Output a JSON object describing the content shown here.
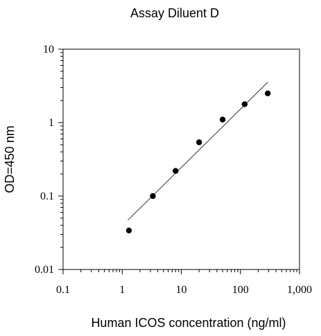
{
  "chart_data": {
    "type": "scatter",
    "title": "Assay Diluent D",
    "xlabel": "Human ICOS concentration (ng/ml)",
    "ylabel": "OD=450 nm",
    "x_scale": "log",
    "y_scale": "log",
    "xlim": [
      0.1,
      1000
    ],
    "ylim": [
      0.01,
      10
    ],
    "x_ticks": [
      {
        "value": 0.1,
        "label": "0.1"
      },
      {
        "value": 1,
        "label": "1"
      },
      {
        "value": 10,
        "label": "10"
      },
      {
        "value": 100,
        "label": "100"
      },
      {
        "value": 1000,
        "label": "1,000"
      }
    ],
    "y_ticks": [
      {
        "value": 0.01,
        "label": "0.01"
      },
      {
        "value": 0.1,
        "label": "0.1"
      },
      {
        "value": 1,
        "label": "1"
      },
      {
        "value": 10,
        "label": "10"
      }
    ],
    "grid": false,
    "legend": "none",
    "series": [
      {
        "points": [
          {
            "x": 1.3,
            "y": 0.034
          },
          {
            "x": 3.3,
            "y": 0.1
          },
          {
            "x": 8.0,
            "y": 0.22
          },
          {
            "x": 20.0,
            "y": 0.54
          },
          {
            "x": 50.0,
            "y": 1.1
          },
          {
            "x": 118.0,
            "y": 1.78
          },
          {
            "x": 290.0,
            "y": 2.5
          }
        ]
      }
    ],
    "fit_line": {
      "x": [
        1.25,
        290.0
      ],
      "y": [
        0.047,
        3.55
      ]
    },
    "colors": {
      "points": "#000000",
      "line": "#000000",
      "axes": "#000000"
    }
  }
}
